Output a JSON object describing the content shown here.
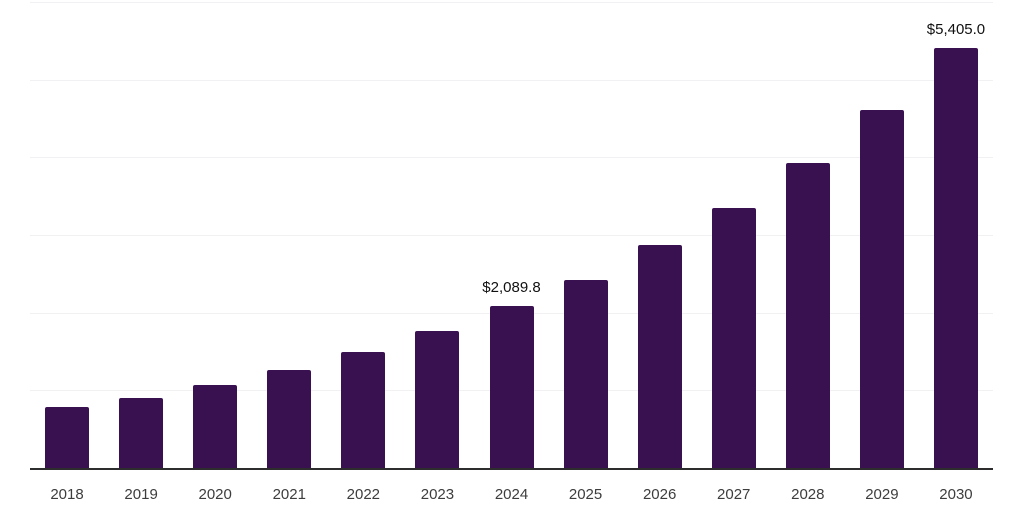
{
  "chart_data": {
    "type": "bar",
    "title": "",
    "xlabel": "",
    "ylabel": "",
    "categories": [
      "2018",
      "2019",
      "2020",
      "2021",
      "2022",
      "2023",
      "2024",
      "2025",
      "2026",
      "2027",
      "2028",
      "2029",
      "2030"
    ],
    "values": [
      780,
      900,
      1070,
      1260,
      1495,
      1765,
      2089.8,
      2420,
      2865,
      3350,
      3925,
      4610,
      5405.0
    ],
    "ylim": [
      0,
      6000
    ],
    "gridline_step": 1000,
    "grid": "horizontal-only",
    "legend": "none",
    "data_labels": [
      {
        "category": "2024",
        "text": "$2,089.8"
      },
      {
        "category": "2030",
        "text": "$5,405.0"
      }
    ],
    "colors": {
      "bar": "#3A1150",
      "axis_line": "#2D2D2D",
      "gridline": "#F1F1F4",
      "tick_label": "#3D3D3D",
      "data_label": "#111111",
      "background": "#FFFFFF"
    }
  }
}
